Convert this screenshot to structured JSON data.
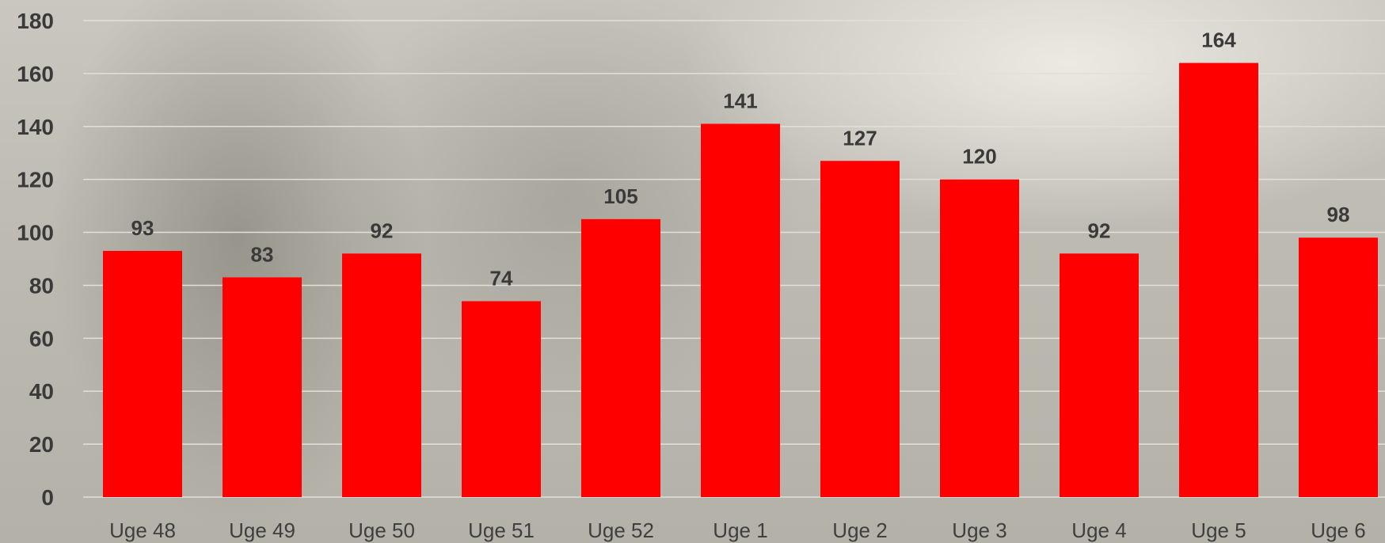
{
  "chart_data": {
    "type": "bar",
    "title": "",
    "xlabel": "",
    "ylabel": "",
    "categories": [
      "Uge 48",
      "Uge 49",
      "Uge 50",
      "Uge 51",
      "Uge 52",
      "Uge 1",
      "Uge 2",
      "Uge 3",
      "Uge 4",
      "Uge 5",
      "Uge 6"
    ],
    "values": [
      93,
      83,
      92,
      74,
      105,
      141,
      127,
      120,
      92,
      164,
      98
    ],
    "ylim": [
      0,
      180
    ],
    "yticks": [
      0,
      20,
      40,
      60,
      80,
      100,
      120,
      140,
      160,
      180
    ],
    "grid": true,
    "bar_color": "#ff0000",
    "data_labels": true
  }
}
